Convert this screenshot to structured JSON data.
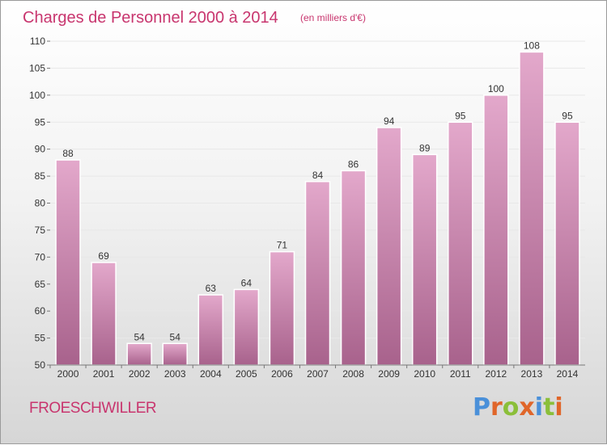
{
  "chart_data": {
    "type": "bar",
    "title": "Charges de Personnel 2000 à 2014",
    "subtitle": "(en milliers d'€)",
    "xlabel": "",
    "ylabel": "",
    "categories": [
      "2000",
      "2001",
      "2002",
      "2003",
      "2004",
      "2005",
      "2006",
      "2007",
      "2008",
      "2009",
      "2010",
      "2011",
      "2012",
      "2013",
      "2014"
    ],
    "values": [
      88,
      69,
      54,
      54,
      63,
      64,
      71,
      84,
      86,
      94,
      89,
      95,
      100,
      108,
      95
    ],
    "ylim": [
      50,
      110
    ],
    "yticks": [
      50,
      55,
      60,
      65,
      70,
      75,
      80,
      85,
      90,
      95,
      100,
      105,
      110
    ],
    "grid": true,
    "bar_color": "#c47ba6"
  },
  "footer": {
    "place_name": "FROESCHWILLER",
    "logo_text": "Proxiti"
  },
  "colors": {
    "title": "#c8356e",
    "logo_letters": [
      "#4a90d9",
      "#e0662a",
      "#8bbf3a",
      "#e0662a",
      "#4a90d9",
      "#8bbf3a",
      "#e0662a"
    ]
  }
}
